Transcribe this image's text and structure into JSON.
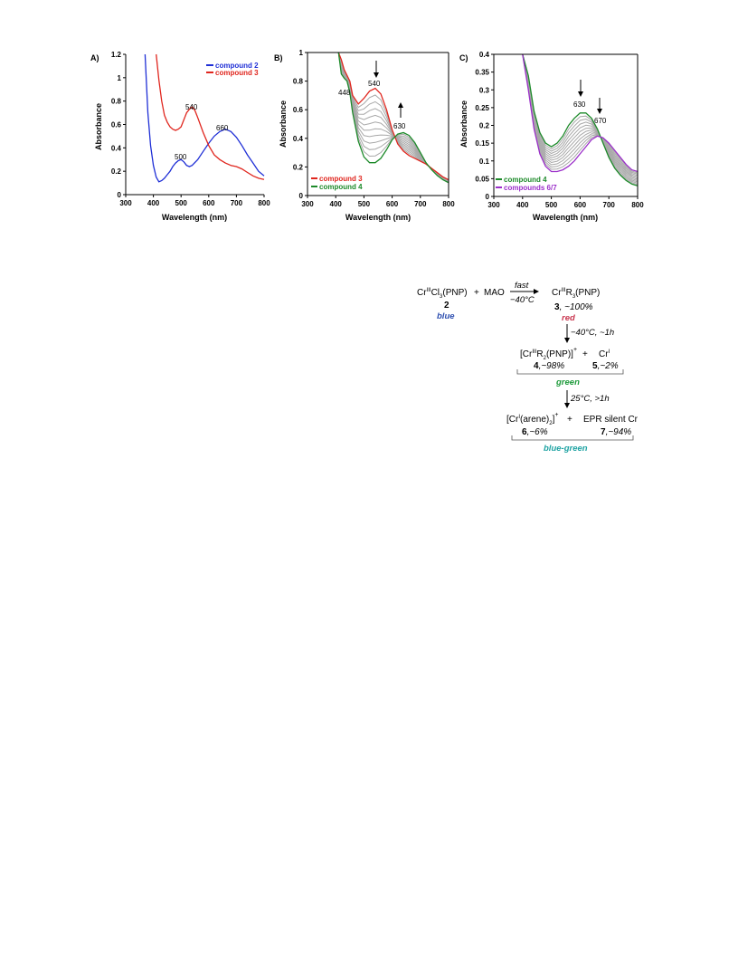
{
  "chart_data": [
    {
      "type": "line",
      "panel_label": "A)",
      "xlabel": "Wavelength (nm)",
      "ylabel": "Absorbance",
      "xlim": [
        300,
        800
      ],
      "ylim": [
        0,
        1.2
      ],
      "x_ticks": [
        "300",
        "400",
        "500",
        "600",
        "700",
        "800"
      ],
      "y_ticks": [
        "0",
        "0.2",
        "0.4",
        "0.6",
        "0.8",
        "1",
        "1.2"
      ],
      "legend_position": "top-right",
      "series": [
        {
          "name": "compound 2",
          "color": "#1f2fd6",
          "x": [
            370,
            380,
            390,
            400,
            410,
            420,
            430,
            440,
            450,
            460,
            470,
            480,
            490,
            500,
            510,
            520,
            530,
            540,
            560,
            580,
            600,
            620,
            640,
            660,
            680,
            700,
            720,
            740,
            760,
            780,
            800
          ],
          "y": [
            1.3,
            0.7,
            0.42,
            0.25,
            0.15,
            0.11,
            0.12,
            0.14,
            0.17,
            0.2,
            0.24,
            0.27,
            0.29,
            0.3,
            0.28,
            0.25,
            0.24,
            0.25,
            0.3,
            0.37,
            0.44,
            0.5,
            0.54,
            0.56,
            0.54,
            0.49,
            0.42,
            0.34,
            0.27,
            0.2,
            0.16
          ]
        },
        {
          "name": "compound 3",
          "color": "#e0261e",
          "x": [
            410,
            420,
            430,
            440,
            450,
            460,
            470,
            480,
            490,
            500,
            510,
            520,
            530,
            540,
            550,
            560,
            580,
            600,
            620,
            640,
            660,
            680,
            700,
            720,
            740,
            760,
            780,
            800
          ],
          "y": [
            1.3,
            0.98,
            0.8,
            0.68,
            0.62,
            0.58,
            0.56,
            0.55,
            0.56,
            0.58,
            0.64,
            0.7,
            0.73,
            0.75,
            0.72,
            0.66,
            0.53,
            0.42,
            0.34,
            0.3,
            0.27,
            0.25,
            0.24,
            0.22,
            0.19,
            0.16,
            0.14,
            0.13
          ]
        }
      ],
      "annotations": [
        "500",
        "540",
        "660"
      ]
    },
    {
      "type": "line",
      "panel_label": "B)",
      "xlabel": "Wavelength (nm)",
      "ylabel": "Absorbance",
      "xlim": [
        300,
        800
      ],
      "ylim": [
        0,
        1
      ],
      "x_ticks": [
        "300",
        "400",
        "500",
        "600",
        "700",
        "800"
      ],
      "y_ticks": [
        "0",
        "0.2",
        "0.4",
        "0.6",
        "0.8",
        "1"
      ],
      "legend_position": "bottom-left",
      "x": [
        410,
        420,
        430,
        440,
        450,
        460,
        480,
        500,
        520,
        540,
        560,
        580,
        600,
        620,
        640,
        660,
        680,
        700,
        720,
        740,
        760,
        780,
        800
      ],
      "series": [
        {
          "name": "compound 3",
          "color": "#e0261e",
          "y": [
            1.05,
            0.95,
            0.88,
            0.84,
            0.8,
            0.7,
            0.64,
            0.68,
            0.73,
            0.75,
            0.71,
            0.6,
            0.46,
            0.36,
            0.31,
            0.28,
            0.26,
            0.24,
            0.22,
            0.19,
            0.16,
            0.13,
            0.11
          ]
        },
        {
          "name": "compound 4",
          "color": "#1d8a2a",
          "y": [
            1.05,
            0.85,
            0.82,
            0.8,
            0.72,
            0.58,
            0.38,
            0.27,
            0.23,
            0.23,
            0.26,
            0.32,
            0.39,
            0.43,
            0.44,
            0.42,
            0.37,
            0.3,
            0.23,
            0.18,
            0.14,
            0.11,
            0.09
          ]
        }
      ],
      "intermediate_series_color": "#a8a8a8",
      "intermediate_series_count": 10,
      "annotations": [
        "448",
        "540",
        "630"
      ]
    },
    {
      "type": "line",
      "panel_label": "C)",
      "xlabel": "Wavelength (nm)",
      "ylabel": "Absorbance",
      "xlim": [
        300,
        800
      ],
      "ylim": [
        0,
        0.4
      ],
      "x_ticks": [
        "300",
        "400",
        "500",
        "600",
        "700",
        "800"
      ],
      "y_ticks": [
        "0",
        "0.05",
        "0.1",
        "0.15",
        "0.2",
        "0.25",
        "0.3",
        "0.35",
        "0.4"
      ],
      "legend_position": "bottom-left",
      "x": [
        400,
        420,
        440,
        460,
        480,
        500,
        520,
        540,
        560,
        580,
        600,
        620,
        640,
        660,
        680,
        700,
        720,
        740,
        760,
        780,
        800
      ],
      "series": [
        {
          "name": "compound 4",
          "color": "#1d8a2a",
          "y": [
            0.42,
            0.34,
            0.24,
            0.18,
            0.15,
            0.14,
            0.15,
            0.17,
            0.2,
            0.22,
            0.235,
            0.235,
            0.22,
            0.19,
            0.15,
            0.11,
            0.08,
            0.06,
            0.045,
            0.035,
            0.03
          ]
        },
        {
          "name": "compounds 6/7",
          "color": "#9b2fc9",
          "y": [
            0.42,
            0.3,
            0.19,
            0.12,
            0.085,
            0.07,
            0.07,
            0.075,
            0.085,
            0.1,
            0.12,
            0.14,
            0.16,
            0.17,
            0.165,
            0.15,
            0.13,
            0.11,
            0.09,
            0.075,
            0.07
          ]
        }
      ],
      "intermediate_series_color": "#a8a8a8",
      "intermediate_series_count": 10,
      "annotations": [
        "630",
        "670"
      ]
    }
  ],
  "scheme": {
    "reactant": {
      "pre": "Cr",
      "sup": "III",
      "mid": "Cl",
      "sub": "3",
      "post": "(PNP)"
    },
    "plus1": "+",
    "mao": "MAO",
    "arrow1_top": "fast",
    "arrow1_bottom": "−40°C",
    "product3": {
      "pre": "Cr",
      "sup": "III",
      "mid": "R",
      "sub": "3",
      "post": "(PNP)"
    },
    "label2": "2",
    "color2": "blue",
    "label3": "3",
    "yield3": ", ~100%",
    "color3": "red",
    "arrow2": "−40°C, ~1h",
    "product4": {
      "open": "[Cr",
      "sup": "III",
      "mid": "R",
      "sub": "2",
      "post": "(PNP)]",
      "charge": "+"
    },
    "plus2": "+",
    "product5": {
      "pre": "Cr",
      "sup": "I"
    },
    "label4": "4",
    "yield4": ",~98%",
    "label5": "5",
    "yield5": ",~2%",
    "color45": "green",
    "arrow3": "25°C, >1h",
    "product6": {
      "open": "[Cr",
      "sup": "I",
      "mid": "(arene)",
      "sub": "2",
      "post": "]",
      "charge": "+"
    },
    "plus3": "+",
    "product7": "EPR silent Cr",
    "label6": "6",
    "yield6": ",~6%",
    "label7": "7",
    "yield7": ",~94%",
    "color67": "blue-green"
  }
}
